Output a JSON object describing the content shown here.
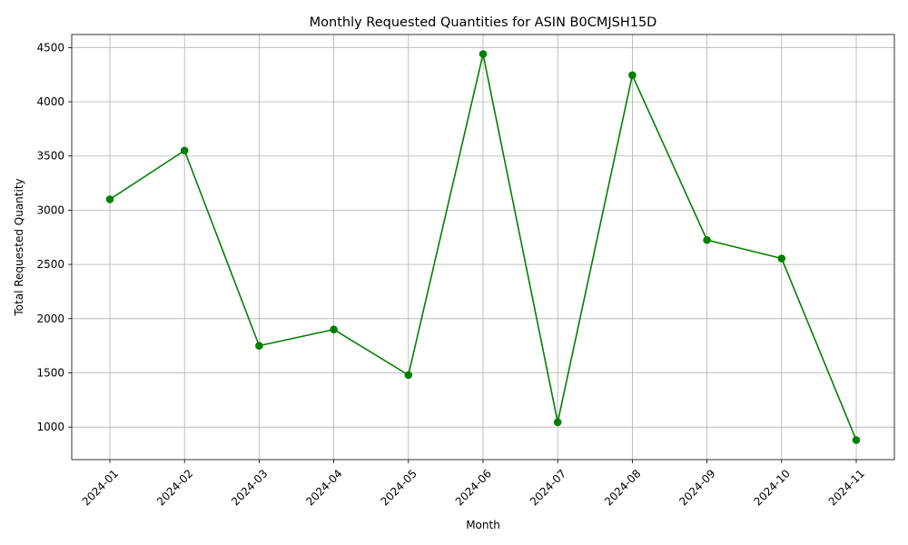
{
  "chart_data": {
    "type": "line",
    "title": "Monthly Requested Quantities for ASIN B0CMJSH15D",
    "xlabel": "Month",
    "ylabel": "Total Requested Quantity",
    "x": [
      "2024-01",
      "2024-02",
      "2024-03",
      "2024-04",
      "2024-05",
      "2024-06",
      "2024-07",
      "2024-08",
      "2024-09",
      "2024-10",
      "2024-11"
    ],
    "y_ticks": [
      "1000",
      "1500",
      "2000",
      "2500",
      "3000",
      "3500",
      "4000",
      "4500"
    ],
    "ylim": [
      700,
      4620
    ],
    "grid": true,
    "series": [
      {
        "values": [
          3100,
          3550,
          1750,
          1900,
          1480,
          4440,
          1045,
          4245,
          2725,
          2555,
          880
        ],
        "color": "#008000",
        "marker": "circle"
      }
    ]
  }
}
